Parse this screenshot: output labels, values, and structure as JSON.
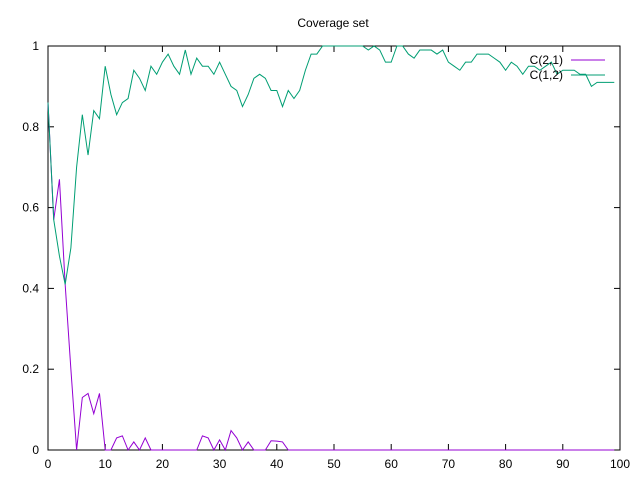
{
  "chart_data": {
    "type": "line",
    "title": "Coverage set",
    "xlabel": "",
    "ylabel": "",
    "xlim": [
      0,
      100
    ],
    "ylim": [
      0,
      1
    ],
    "x_ticks": [
      0,
      10,
      20,
      30,
      40,
      50,
      60,
      70,
      80,
      90,
      100
    ],
    "x_tick_labels": [
      "0",
      "10",
      "20",
      "30",
      "40",
      "50",
      "60",
      "70",
      "80",
      "90",
      "100"
    ],
    "y_ticks": [
      0,
      0.2,
      0.4,
      0.6,
      0.8,
      1
    ],
    "y_tick_labels": [
      "0",
      "0.2",
      "0.4",
      "0.6",
      "0.8",
      "1"
    ],
    "grid": false,
    "legend_position": "top-right",
    "series": [
      {
        "name": "C(2,1)",
        "color": "#9400d3",
        "x": [
          0,
          1,
          2,
          3,
          4,
          5,
          6,
          7,
          8,
          9,
          10,
          11,
          12,
          13,
          14,
          15,
          16,
          17,
          18,
          19,
          20,
          21,
          22,
          23,
          24,
          25,
          26,
          27,
          28,
          29,
          30,
          31,
          32,
          33,
          34,
          35,
          36,
          37,
          38,
          39,
          40,
          41,
          42,
          43,
          44,
          45,
          46,
          47,
          48,
          49,
          50,
          51,
          52,
          53,
          54,
          55,
          56,
          57,
          58,
          59,
          60,
          61,
          62,
          63,
          64,
          65,
          66,
          67,
          68,
          69,
          70,
          71,
          72,
          73,
          74,
          75,
          76,
          77,
          78,
          79,
          80,
          81,
          82,
          83,
          84,
          85,
          86,
          87,
          88,
          89,
          90,
          91,
          92,
          93,
          94,
          95,
          96,
          97,
          98,
          99
        ],
        "y": [
          0.86,
          0.57,
          0.67,
          0.41,
          0.2,
          0,
          0.13,
          0.14,
          0.09,
          0.14,
          0,
          0,
          0.03,
          0.035,
          0,
          0.02,
          0,
          0.03,
          0,
          0,
          0,
          0,
          0,
          0,
          0,
          0,
          0,
          0.035,
          0.03,
          0,
          0.025,
          0,
          0.048,
          0.03,
          0,
          0.02,
          0,
          0,
          0,
          0.023,
          0.022,
          0.02,
          0,
          0,
          0,
          0,
          0,
          0,
          0,
          0,
          0,
          0,
          0,
          0,
          0,
          0,
          0,
          0,
          0,
          0,
          0,
          0,
          0,
          0,
          0,
          0,
          0,
          0,
          0,
          0,
          0,
          0,
          0,
          0,
          0,
          0,
          0,
          0,
          0,
          0,
          0,
          0,
          0,
          0,
          0,
          0,
          0,
          0,
          0,
          0,
          0,
          0,
          0,
          0,
          0,
          0,
          0,
          0,
          0,
          0
        ]
      },
      {
        "name": "C(1,2)",
        "color": "#009e73",
        "x": [
          0,
          1,
          2,
          3,
          4,
          5,
          6,
          7,
          8,
          9,
          10,
          11,
          12,
          13,
          14,
          15,
          16,
          17,
          18,
          19,
          20,
          21,
          22,
          23,
          24,
          25,
          26,
          27,
          28,
          29,
          30,
          31,
          32,
          33,
          34,
          35,
          36,
          37,
          38,
          39,
          40,
          41,
          42,
          43,
          44,
          45,
          46,
          47,
          48,
          49,
          50,
          51,
          52,
          53,
          54,
          55,
          56,
          57,
          58,
          59,
          60,
          61,
          62,
          63,
          64,
          65,
          66,
          67,
          68,
          69,
          70,
          71,
          72,
          73,
          74,
          75,
          76,
          77,
          78,
          79,
          80,
          81,
          82,
          83,
          84,
          85,
          86,
          87,
          88,
          89,
          90,
          91,
          92,
          93,
          94,
          95,
          96,
          97,
          98,
          99
        ],
        "y": [
          0.86,
          0.57,
          0.48,
          0.41,
          0.5,
          0.7,
          0.83,
          0.73,
          0.84,
          0.82,
          0.95,
          0.88,
          0.83,
          0.86,
          0.87,
          0.94,
          0.92,
          0.89,
          0.95,
          0.93,
          0.96,
          0.98,
          0.95,
          0.93,
          0.99,
          0.93,
          0.97,
          0.95,
          0.95,
          0.93,
          0.96,
          0.93,
          0.9,
          0.89,
          0.85,
          0.88,
          0.92,
          0.93,
          0.92,
          0.89,
          0.89,
          0.85,
          0.89,
          0.87,
          0.89,
          0.94,
          0.98,
          0.98,
          1,
          1,
          1,
          1,
          1,
          1,
          1,
          1,
          0.99,
          1,
          0.99,
          0.96,
          0.96,
          1,
          1,
          0.98,
          0.97,
          0.99,
          0.99,
          0.99,
          0.98,
          0.99,
          0.96,
          0.95,
          0.94,
          0.96,
          0.96,
          0.98,
          0.98,
          0.98,
          0.97,
          0.96,
          0.94,
          0.96,
          0.95,
          0.93,
          0.95,
          0.95,
          0.94,
          0.95,
          0.96,
          0.93,
          0.94,
          0.94,
          0.94,
          0.93,
          0.93,
          0.9,
          0.91,
          0.91,
          0.91,
          0.91
        ]
      }
    ]
  }
}
